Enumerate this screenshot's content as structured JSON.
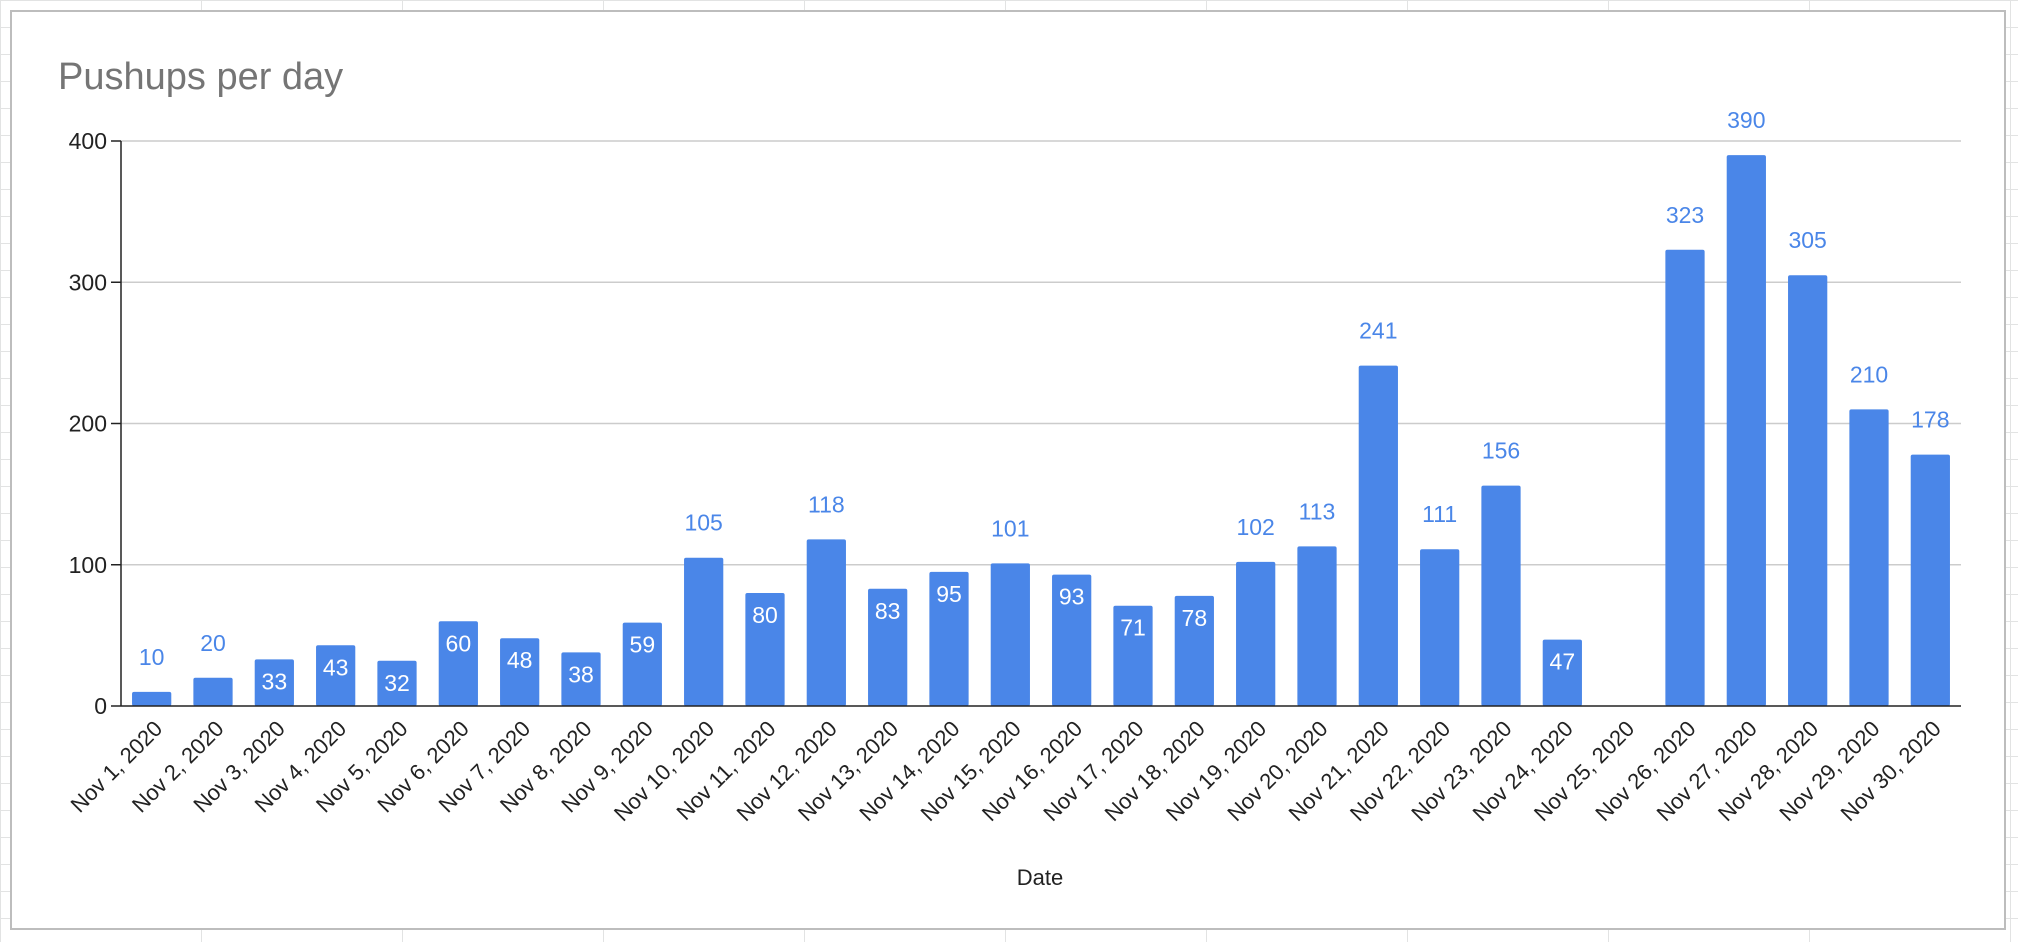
{
  "chart_data": {
    "type": "bar",
    "title": "Pushups per day",
    "xlabel": "Date",
    "ylabel": "",
    "ylim": [
      0,
      400
    ],
    "yticks": [
      0,
      100,
      200,
      300,
      400
    ],
    "grid": true,
    "legend": "none",
    "bar_color": "#4a86e8",
    "categories": [
      "Nov 1, 2020",
      "Nov 2, 2020",
      "Nov 3, 2020",
      "Nov 4, 2020",
      "Nov 5, 2020",
      "Nov 6, 2020",
      "Nov 7, 2020",
      "Nov 8, 2020",
      "Nov 9, 2020",
      "Nov 10, 2020",
      "Nov 11, 2020",
      "Nov 12, 2020",
      "Nov 13, 2020",
      "Nov 14, 2020",
      "Nov 15, 2020",
      "Nov 16, 2020",
      "Nov 17, 2020",
      "Nov 18, 2020",
      "Nov 19, 2020",
      "Nov 20, 2020",
      "Nov 21, 2020",
      "Nov 22, 2020",
      "Nov 23, 2020",
      "Nov 24, 2020",
      "Nov 25, 2020",
      "Nov 26, 2020",
      "Nov 27, 2020",
      "Nov 28, 2020",
      "Nov 29, 2020",
      "Nov 30, 2020"
    ],
    "values": [
      10,
      20,
      33,
      43,
      32,
      60,
      48,
      38,
      59,
      105,
      80,
      118,
      83,
      95,
      101,
      93,
      71,
      78,
      102,
      113,
      241,
      111,
      156,
      47,
      null,
      323,
      390,
      305,
      210,
      178
    ]
  }
}
